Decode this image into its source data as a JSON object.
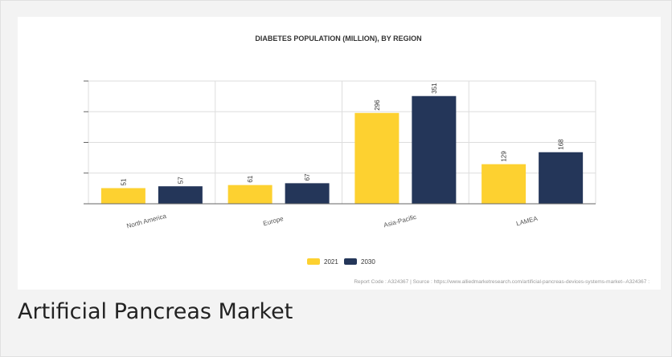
{
  "figure": {
    "caption": "Artificial Pancreas Market",
    "source_note": "Report Code : A324367  |  Source : https://www.alliedmarketresearch.com/artificial-pancreas-devices-systems-market--A324367 :"
  },
  "chart_data": {
    "type": "bar",
    "title": "DIABETES POPULATION (MILLION), BY REGION",
    "xlabel": "",
    "ylabel": "",
    "categories": [
      "North America",
      "Europe",
      "Asia-Pacific",
      "LAMEA"
    ],
    "series": [
      {
        "name": "2021",
        "values": [
          51,
          61,
          296,
          129
        ],
        "color": "#fdd130"
      },
      {
        "name": "2030",
        "values": [
          57,
          67,
          351,
          168
        ],
        "color": "#243659"
      }
    ],
    "ylim": [
      0,
      400
    ],
    "y_tick_step": 100,
    "grid": true,
    "legend": "bottom-center",
    "data_labels": true
  }
}
